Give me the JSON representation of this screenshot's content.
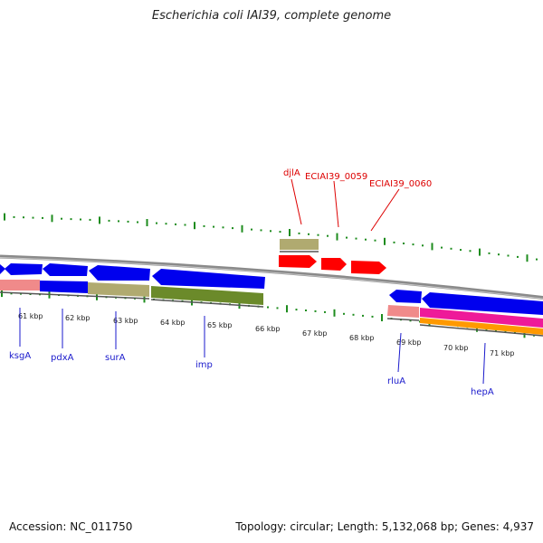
{
  "title": "Escherichia coli IAI39, complete genome",
  "footer": {
    "accession": "Accession: NC_011750",
    "summary": "Topology: circular; Length: 5,132,068 bp; Genes: 4,937"
  },
  "colors": {
    "tick": "#1e8c1e",
    "backbone": "#888888",
    "cds": "#0000ee",
    "cds_top": "#ff0000",
    "gene_label_top": "#dd0000",
    "gene_label_bottom": "#1a1acc",
    "olive": "#b0aa70",
    "dark_olive": "#6b8a2a",
    "salmon": "#f08a8a",
    "magenta": "#ee1a99",
    "orange": "#ff9900"
  },
  "kbp_labels": [
    "61 kbp",
    "62 kbp",
    "63 kbp",
    "64 kbp",
    "65 kbp",
    "66 kbp",
    "67 kbp",
    "68 kbp",
    "69 kbp",
    "70 kbp",
    "71 kbp"
  ],
  "top_genes": [
    "djlA",
    "ECIAI39_0059",
    "ECIAI39_0060"
  ],
  "bottom_genes": [
    "ksgA",
    "pdxA",
    "surA",
    "imp",
    "rluA",
    "hepA"
  ]
}
